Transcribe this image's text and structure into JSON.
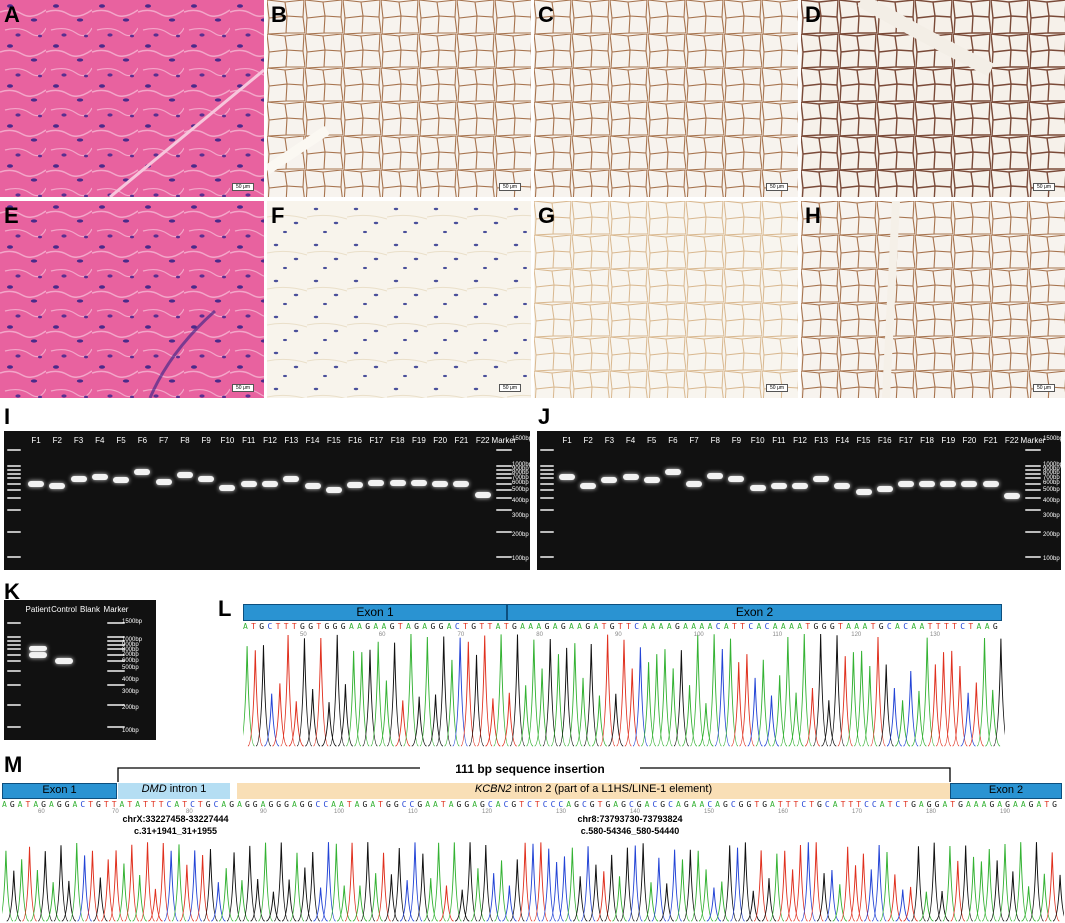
{
  "panels": {
    "A": "A",
    "B": "B",
    "C": "C",
    "D": "D",
    "E": "E",
    "F": "F",
    "G": "G",
    "H": "H",
    "I": "I",
    "J": "J",
    "K": "K",
    "L": "L",
    "M": "M"
  },
  "scale_bar": "50 μm",
  "gel_I": {
    "lanes": [
      "F1",
      "F2",
      "F3",
      "F4",
      "F5",
      "F6",
      "F7",
      "F8",
      "F9",
      "F10",
      "F11",
      "F12",
      "F13",
      "F14",
      "F15",
      "F16",
      "F17",
      "F18",
      "F19",
      "F20",
      "F21",
      "F22",
      "Marker"
    ],
    "marker_sizes": [
      "1500bp",
      "1000bp",
      "900bp",
      "800bp",
      "700bp",
      "600bp",
      "500bp",
      "400bp",
      "300bp",
      "200bp",
      "100bp"
    ]
  },
  "gel_J": {
    "lanes": [
      "F1",
      "F2",
      "F3",
      "F4",
      "F5",
      "F6",
      "F7",
      "F8",
      "F9",
      "F10",
      "F11",
      "F12",
      "F13",
      "F14",
      "F15",
      "F16",
      "F17",
      "F18",
      "F19",
      "F20",
      "F21",
      "F22",
      "Marker"
    ],
    "marker_sizes": [
      "1500bp",
      "1000bp",
      "900bp",
      "800bp",
      "700bp",
      "600bp",
      "500bp",
      "400bp",
      "300bp",
      "200bp",
      "100bp"
    ]
  },
  "gel_K": {
    "lanes": [
      "Patient",
      "Control",
      "Blank",
      "Marker"
    ],
    "marker_sizes": [
      "1500bp",
      "1000bp",
      "900bp",
      "800bp",
      "700bp",
      "600bp",
      "500bp",
      "400bp",
      "300bp",
      "200bp",
      "100bp"
    ]
  },
  "panel_L": {
    "exon1": "Exon 1",
    "exon2": "Exon 2",
    "sequence": "ATGCTTTGGTGGGAAGAAGTAGAGGACTGTTATGAAAGAGAAGATGTTCAAAAGAAAACATTCACAAAATGGGTAAATGCACAATTTTCTAAG",
    "positions": [
      "50",
      "60",
      "70",
      "80",
      "90",
      "100",
      "110",
      "120",
      "130"
    ]
  },
  "panel_M": {
    "insertion_label": "111 bp sequence insertion",
    "exon1": "Exon 1",
    "exon2": "Exon 2",
    "dmd_gene": "DMD",
    "dmd_label": " intron 1",
    "kcnb_gene": "KCBN2",
    "kcnb_label": " intron 2 (part of a L1HS/LINE-1 element)",
    "sequence": "AGATAGAGGACTGTTATATTTCATCTGCAGAGGAGGGAGGCCAATAGATGGCCGAATAGGAGCACGTCTCCCAGCGTGAGCGACGCAGAACAGCGGTGATTTCTGCATTTCCATCTGAGGATGAAAGAGAAGATG",
    "positions": [
      "60",
      "70",
      "80",
      "90",
      "100",
      "110",
      "120",
      "130",
      "140",
      "150",
      "160",
      "170",
      "180",
      "190"
    ],
    "dmd_coord1": "chrX:33227458-33227444",
    "dmd_coord2": "c.31+1941_31+1955",
    "kcnb_coord1": "chr8:73793730-73793824",
    "kcnb_coord2": "c.580-54346_580-54440"
  },
  "colors": {
    "he_pink": "#e8609e",
    "ihc_bg": "#f2ebe2",
    "exon_blue": "#2a93d2",
    "dmd_blue": "#b5def3",
    "kcnb_orange": "#f9dfb6",
    "trace_A": "#34b233",
    "trace_C": "#2344d6",
    "trace_G": "#111111",
    "trace_T": "#e0301e"
  }
}
